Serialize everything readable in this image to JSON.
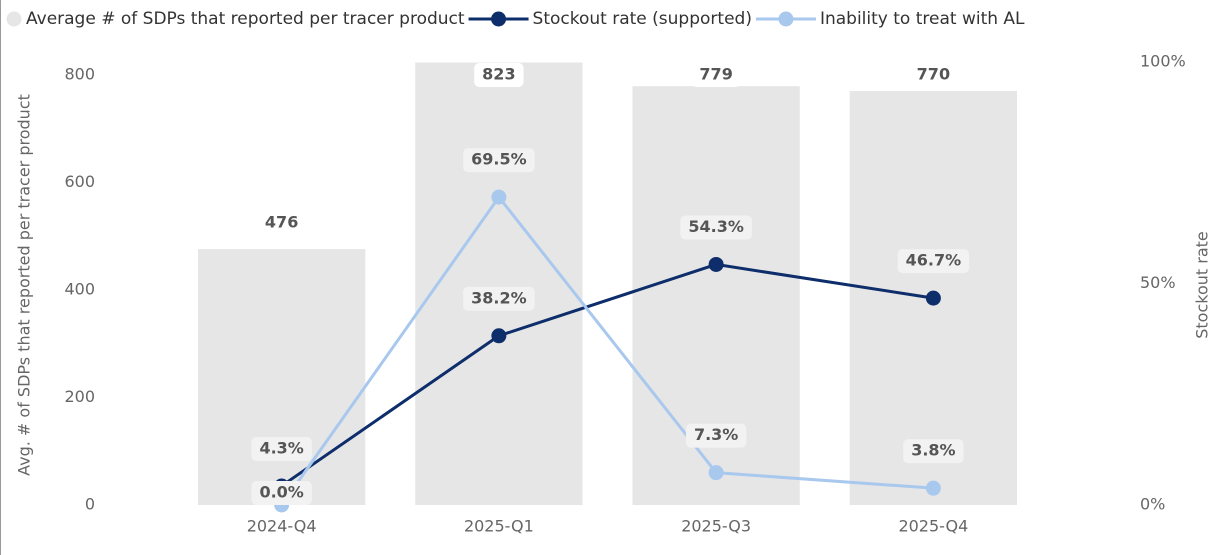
{
  "chart_data": {
    "type": "bar-line",
    "categories": [
      "2024-Q4",
      "2025-Q1",
      "2025-Q3",
      "2025-Q4"
    ],
    "series": [
      {
        "name": "Average # of SDPs that reported per tracer product",
        "type": "bar",
        "color": "#e6e6e6",
        "values": [
          476,
          823,
          779,
          770
        ]
      },
      {
        "name": "Stockout rate (supported)",
        "type": "line",
        "axis": "y2",
        "color": "#0e2d6b",
        "values": [
          4.3,
          38.2,
          54.3,
          46.7
        ],
        "value_labels": [
          "4.3%",
          "38.2%",
          "54.3%",
          "46.7%"
        ]
      },
      {
        "name": "Inability to treat with AL",
        "type": "line",
        "axis": "y2",
        "color": "#a9c8ee",
        "values": [
          0.0,
          69.5,
          7.3,
          3.8
        ],
        "value_labels": [
          "0.0%",
          "69.5%",
          "7.3%",
          "3.8%"
        ]
      }
    ],
    "y_label": "Avg. # of SDPs that reported per tracer product",
    "y2_label": "Stockout rate",
    "ylim": [
      0,
      824
    ],
    "yticks": [
      0,
      200,
      400,
      600,
      800
    ],
    "y2lim": [
      0,
      100
    ],
    "y2ticks": [
      {
        "value": 0,
        "label": "0%"
      },
      {
        "value": 50,
        "label": "50%"
      },
      {
        "value": 100,
        "label": "100%"
      }
    ],
    "legend": "top-left",
    "grid": false
  }
}
